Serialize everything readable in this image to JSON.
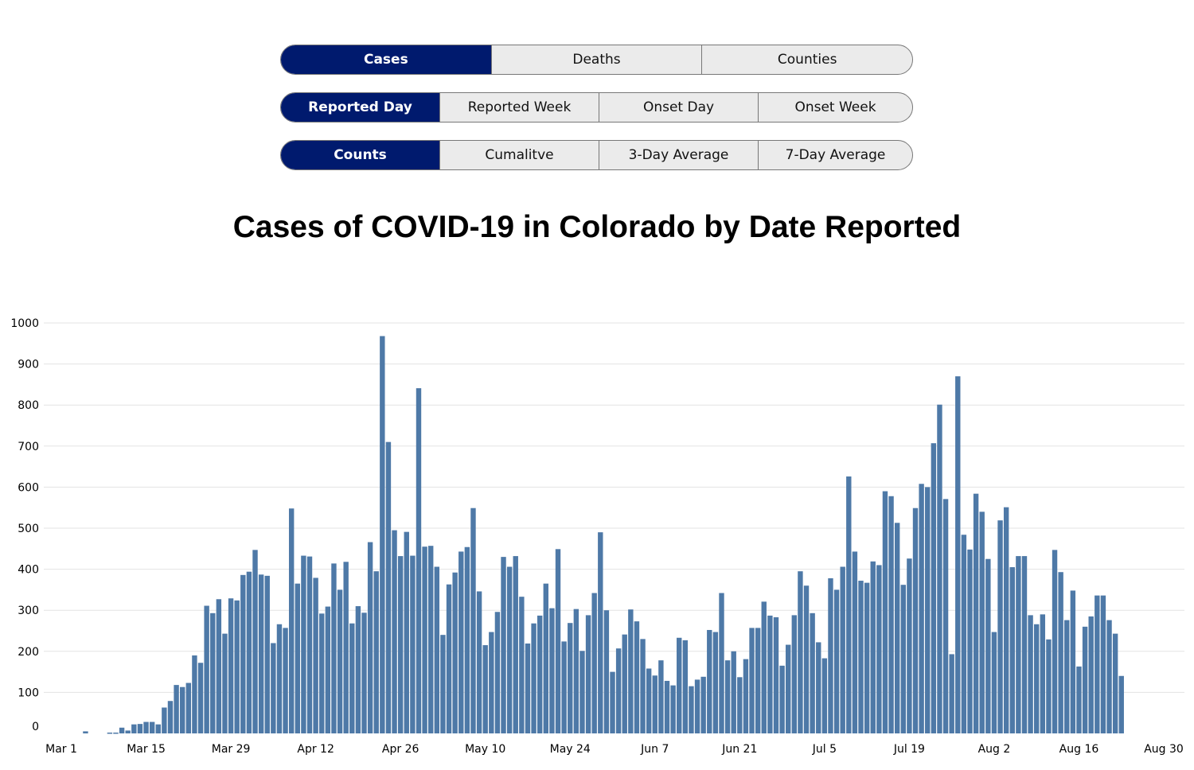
{
  "controls": {
    "metric": {
      "options": [
        "Cases",
        "Deaths",
        "Counties"
      ],
      "selected": "Cases"
    },
    "period": {
      "options": [
        "Reported Day",
        "Reported Week",
        "Onset Day",
        "Onset Week"
      ],
      "selected": "Reported Day"
    },
    "measure": {
      "options": [
        "Counts",
        "Cumalitve",
        "3-Day Average",
        "7-Day Average"
      ],
      "selected": "Counts"
    }
  },
  "colors": {
    "active": "#001a6e",
    "bar": "#4e79a7",
    "inactive": "#ebebeb"
  },
  "chart_data": {
    "type": "bar",
    "title": "Cases of COVID-19 in Colorado by Date Reported",
    "xlabel": "",
    "ylabel": "",
    "ylim": [
      0,
      1000
    ],
    "grid": true,
    "y_ticks": [
      "0",
      "100",
      "200",
      "300",
      "400",
      "500",
      "600",
      "700",
      "800",
      "900",
      "1000"
    ],
    "x_ticks": [
      "Mar 1",
      "Mar 15",
      "Mar 29",
      "Apr 12",
      "Apr 26",
      "May 10",
      "May 24",
      "Jun 7",
      "Jun 21",
      "Jul 5",
      "Jul 19",
      "Aug 2",
      "Aug 16",
      "Aug 30"
    ],
    "dates": [
      "Mar 5",
      "Mar 9",
      "Mar 10",
      "Mar 11",
      "Mar 12",
      "Mar 13",
      "Mar 14",
      "Mar 15",
      "Mar 16",
      "Mar 17",
      "Mar 18",
      "Mar 19",
      "Mar 20",
      "Mar 21",
      "Mar 22",
      "Mar 23",
      "Mar 24",
      "Mar 25",
      "Mar 26",
      "Mar 27",
      "Mar 28",
      "Mar 29",
      "Mar 30",
      "Mar 31",
      "Apr 1",
      "Apr 2",
      "Apr 3",
      "Apr 4",
      "Apr 5",
      "Apr 6",
      "Apr 7",
      "Apr 8",
      "Apr 9",
      "Apr 10",
      "Apr 11",
      "Apr 12",
      "Apr 13",
      "Apr 14",
      "Apr 15",
      "Apr 16",
      "Apr 17",
      "Apr 18",
      "Apr 19",
      "Apr 20",
      "Apr 21",
      "Apr 22",
      "Apr 23",
      "Apr 24",
      "Apr 25",
      "Apr 26",
      "Apr 27",
      "Apr 28",
      "Apr 29",
      "Apr 30",
      "May 1",
      "May 2",
      "May 3",
      "May 4",
      "May 5",
      "May 6",
      "May 7",
      "May 8",
      "May 9",
      "May 10",
      "May 11",
      "May 12",
      "May 13",
      "May 14",
      "May 15",
      "May 16",
      "May 17",
      "May 18",
      "May 19",
      "May 20",
      "May 21",
      "May 22",
      "May 23",
      "May 24",
      "May 25",
      "May 26",
      "May 27",
      "May 28",
      "May 29",
      "May 30",
      "May 31",
      "Jun 1",
      "Jun 2",
      "Jun 3",
      "Jun 4",
      "Jun 5",
      "Jun 6",
      "Jun 7",
      "Jun 8",
      "Jun 9",
      "Jun 10",
      "Jun 11",
      "Jun 12",
      "Jun 13",
      "Jun 14",
      "Jun 15",
      "Jun 16",
      "Jun 17",
      "Jun 18",
      "Jun 19",
      "Jun 20",
      "Jun 21",
      "Jun 22",
      "Jun 23",
      "Jun 24",
      "Jun 25",
      "Jun 26",
      "Jun 27",
      "Jun 28",
      "Jun 29",
      "Jun 30",
      "Jul 1",
      "Jul 2",
      "Jul 3",
      "Jul 4",
      "Jul 5",
      "Jul 6",
      "Jul 7",
      "Jul 8",
      "Jul 9",
      "Jul 10",
      "Jul 11",
      "Jul 12",
      "Jul 13",
      "Jul 14",
      "Jul 15",
      "Jul 16",
      "Jul 17",
      "Jul 18",
      "Jul 19",
      "Jul 20",
      "Jul 21",
      "Jul 22",
      "Jul 23",
      "Jul 24",
      "Jul 25",
      "Jul 26",
      "Jul 27",
      "Jul 28",
      "Jul 29",
      "Jul 30",
      "Jul 31",
      "Aug 1",
      "Aug 2",
      "Aug 3",
      "Aug 4",
      "Aug 5",
      "Aug 6",
      "Aug 7",
      "Aug 8",
      "Aug 9",
      "Aug 10",
      "Aug 11",
      "Aug 12",
      "Aug 13",
      "Aug 14",
      "Aug 15",
      "Aug 16",
      "Aug 17",
      "Aug 18",
      "Aug 19",
      "Aug 20",
      "Aug 21",
      "Aug 22",
      "Aug 23"
    ],
    "values": [
      5,
      2,
      2,
      14,
      7,
      22,
      23,
      28,
      28,
      22,
      63,
      79,
      118,
      113,
      123,
      190,
      172,
      311,
      293,
      327,
      243,
      329,
      324,
      386,
      394,
      447,
      387,
      384,
      220,
      266,
      257,
      548,
      365,
      433,
      431,
      379,
      292,
      309,
      414,
      350,
      418,
      268,
      310,
      294,
      466,
      395,
      968,
      710,
      495,
      432,
      491,
      433,
      841,
      455,
      457,
      406,
      240,
      363,
      392,
      443,
      454,
      549,
      346,
      215,
      247,
      296,
      430,
      406,
      432,
      333,
      219,
      268,
      287,
      365,
      305,
      449,
      224,
      269,
      303,
      201,
      288,
      342,
      490,
      300,
      150,
      207,
      241,
      302,
      273,
      230,
      158,
      141,
      178,
      128,
      117,
      233,
      227,
      115,
      131,
      138,
      252,
      247,
      342,
      178,
      200,
      137,
      181,
      257,
      257,
      321,
      287,
      283,
      165,
      216,
      288,
      395,
      360,
      293,
      222,
      183,
      378,
      350,
      406,
      626,
      443,
      372,
      367,
      419,
      410,
      590,
      578,
      513,
      362,
      426,
      549,
      608,
      600,
      707,
      801,
      571,
      193,
      870,
      484,
      448,
      584,
      540,
      425,
      247,
      519,
      551,
      405,
      432,
      432,
      288,
      266,
      290,
      229,
      447,
      393,
      276,
      348,
      163,
      260,
      285,
      336,
      336,
      276,
      243,
      140
    ]
  }
}
